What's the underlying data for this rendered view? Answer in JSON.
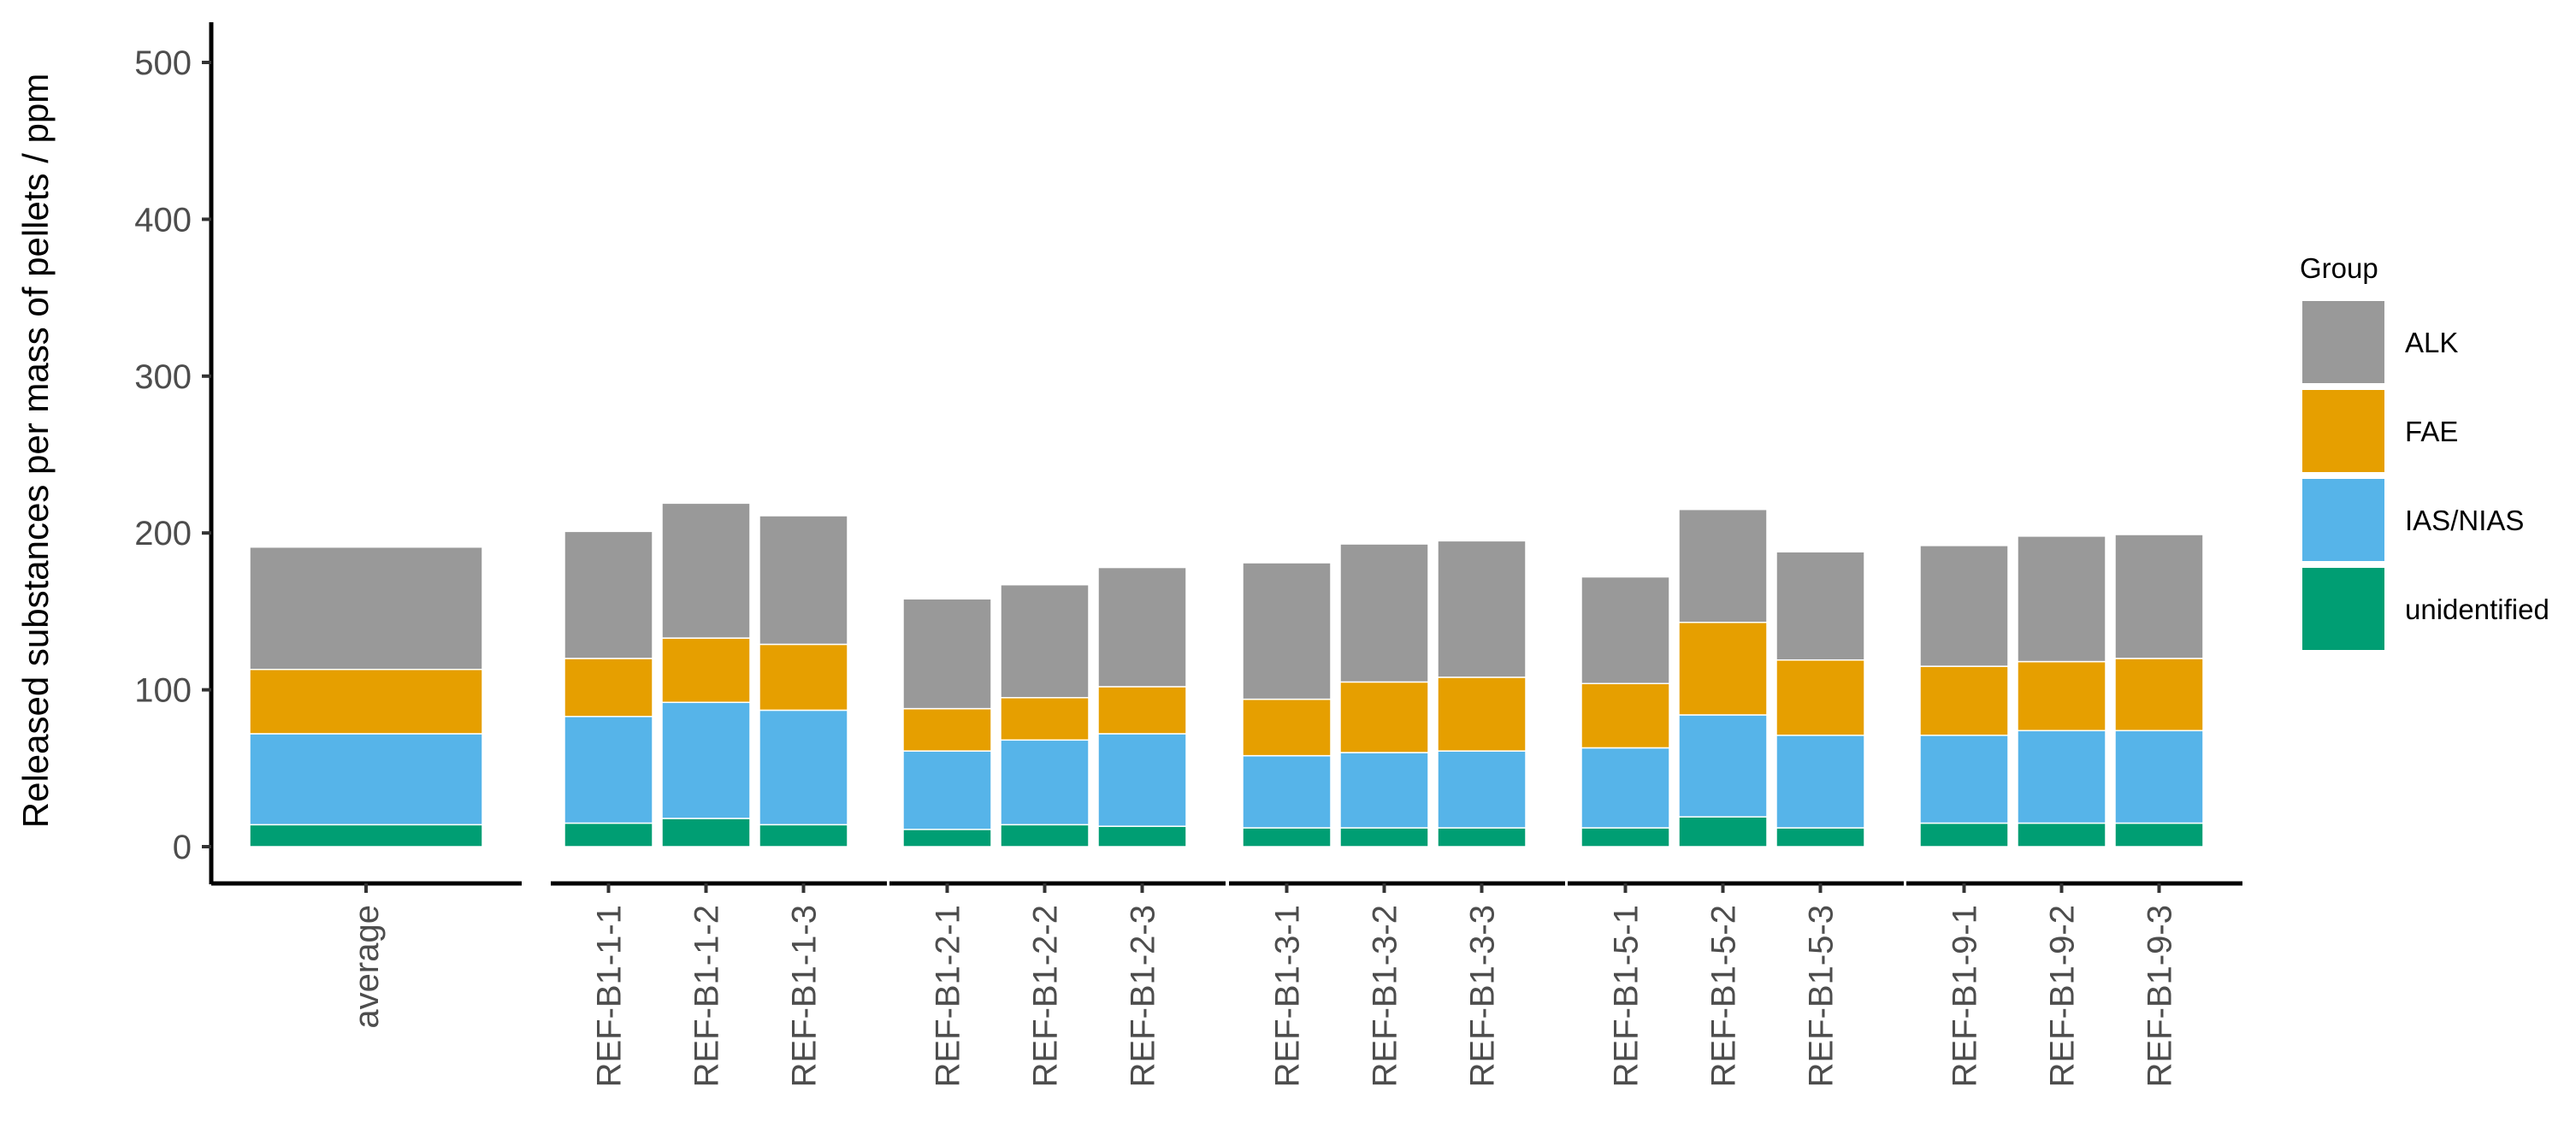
{
  "chart_data": {
    "type": "bar",
    "stacked": true,
    "title": "",
    "xlabel": "",
    "ylabel": "Released substances per mass of pellets / ppm",
    "ylim": [
      0,
      500
    ],
    "yticks": [
      0,
      100,
      200,
      300,
      400,
      500
    ],
    "grid": false,
    "legend_position": "right",
    "legend_title": "Group",
    "legend": [
      {
        "name": "ALK",
        "color": "#999999"
      },
      {
        "name": "FAE",
        "color": "#E69F00"
      },
      {
        "name": "IAS/NIAS",
        "color": "#56B4E9"
      },
      {
        "name": "unidentified",
        "color": "#009E73"
      }
    ],
    "groups": [
      {
        "label": "average",
        "categories": [
          "average"
        ]
      },
      {
        "label": "REF-B1-1",
        "categories": [
          "REF-B1-1-1",
          "REF-B1-1-2",
          "REF-B1-1-3"
        ]
      },
      {
        "label": "REF-B1-2",
        "categories": [
          "REF-B1-2-1",
          "REF-B1-2-2",
          "REF-B1-2-3"
        ]
      },
      {
        "label": "REF-B1-3",
        "categories": [
          "REF-B1-3-1",
          "REF-B1-3-2",
          "REF-B1-3-3"
        ]
      },
      {
        "label": "REF-B1-5",
        "categories": [
          "REF-B1-5-1",
          "REF-B1-5-2",
          "REF-B1-5-3"
        ]
      },
      {
        "label": "REF-B1-9",
        "categories": [
          "REF-B1-9-1",
          "REF-B1-9-2",
          "REF-B1-9-3"
        ]
      }
    ],
    "categories": [
      "average",
      "REF-B1-1-1",
      "REF-B1-1-2",
      "REF-B1-1-3",
      "REF-B1-2-1",
      "REF-B1-2-2",
      "REF-B1-2-3",
      "REF-B1-3-1",
      "REF-B1-3-2",
      "REF-B1-3-3",
      "REF-B1-5-1",
      "REF-B1-5-2",
      "REF-B1-5-3",
      "REF-B1-9-1",
      "REF-B1-9-2",
      "REF-B1-9-3"
    ],
    "series": [
      {
        "name": "unidentified",
        "color": "#009E73",
        "values": [
          14,
          15,
          18,
          14,
          11,
          14,
          13,
          12,
          12,
          12,
          12,
          19,
          12,
          15,
          15,
          15
        ]
      },
      {
        "name": "IAS/NIAS",
        "color": "#56B4E9",
        "values": [
          58,
          68,
          74,
          73,
          50,
          54,
          59,
          46,
          48,
          49,
          51,
          65,
          59,
          56,
          59,
          59
        ]
      },
      {
        "name": "FAE",
        "color": "#E69F00",
        "values": [
          41,
          37,
          41,
          42,
          27,
          27,
          30,
          36,
          45,
          47,
          41,
          59,
          48,
          44,
          44,
          46
        ]
      },
      {
        "name": "ALK",
        "color": "#999999",
        "values": [
          78,
          81,
          86,
          82,
          70,
          72,
          76,
          87,
          88,
          87,
          68,
          72,
          69,
          77,
          80,
          79
        ]
      }
    ]
  }
}
